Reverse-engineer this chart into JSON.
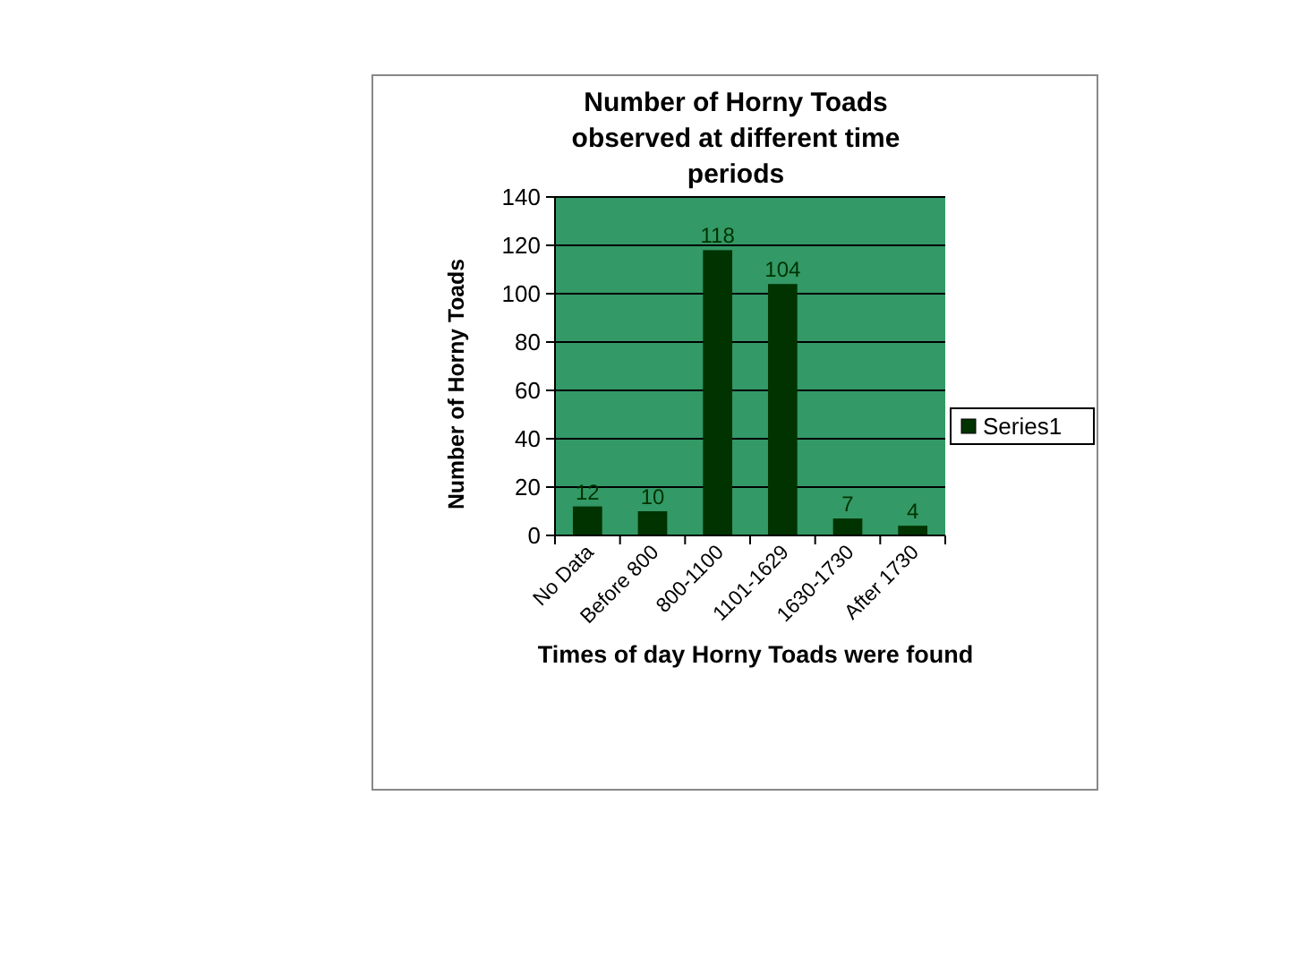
{
  "chart_data": {
    "type": "bar",
    "title": "Number of Horny Toads observed at different time periods",
    "xlabel": "Times of day Horny Toads were found",
    "ylabel": "Number of Horny Toads",
    "categories": [
      "No Data",
      "Before 800",
      "800-1100",
      "1101-1629",
      "1630-1730",
      "After 1730"
    ],
    "series": [
      {
        "name": "Series1",
        "color": "#003300",
        "values": [
          12,
          10,
          118,
          104,
          7,
          4
        ]
      }
    ],
    "ylim": [
      0,
      140
    ],
    "yticks": [
      0,
      20,
      40,
      60,
      80,
      100,
      120,
      140
    ],
    "grid": "y",
    "legend": "right",
    "data_labels": true
  }
}
